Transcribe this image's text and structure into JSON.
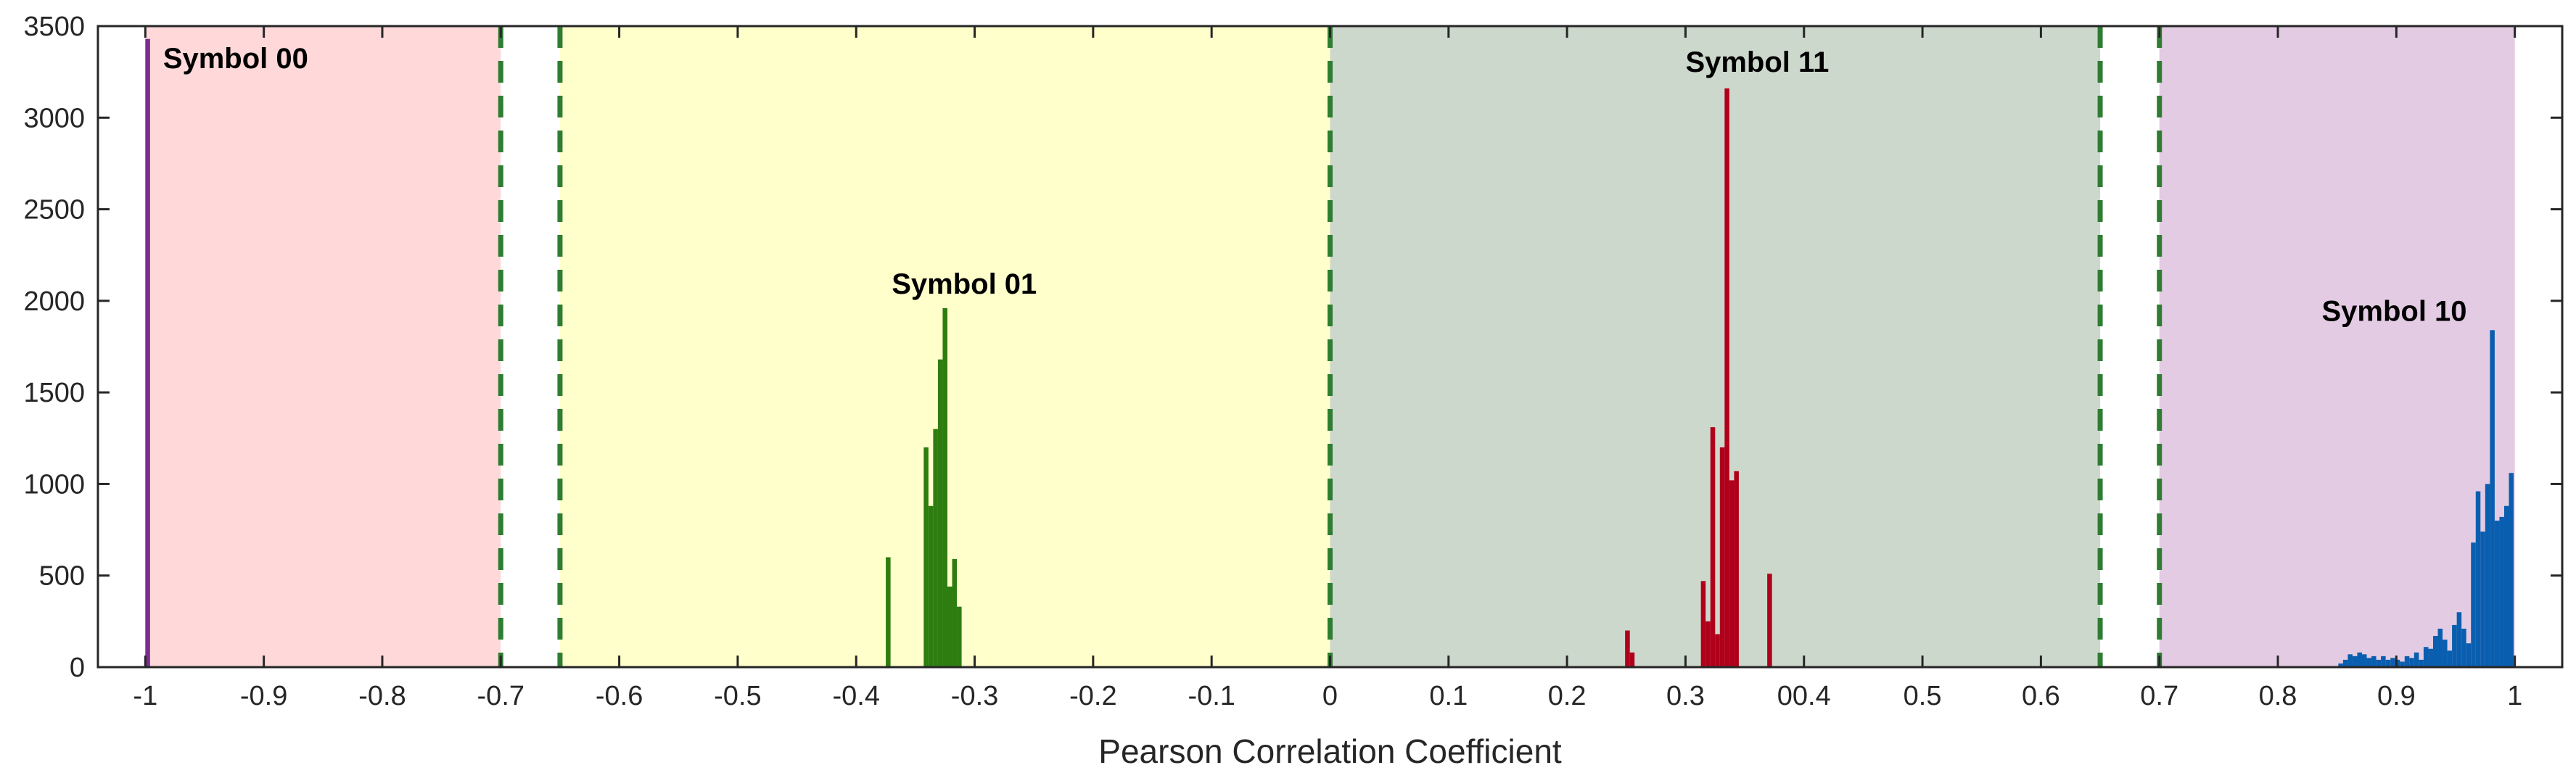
{
  "chart_data": {
    "type": "bar",
    "title": "",
    "xlabel": "Pearson Correlation Coefficient",
    "ylabel": "",
    "xlim": [
      -1.04,
      1.04
    ],
    "ylim": [
      0,
      3500
    ],
    "grid": false,
    "x_ticks": [
      -1,
      -0.9,
      -0.8,
      -0.7,
      -0.6,
      -0.5,
      -0.4,
      -0.3,
      -0.2,
      -0.1,
      0,
      0.1,
      0.2,
      0.3,
      0.4,
      0.5,
      0.6,
      0.7,
      0.8,
      0.9,
      1
    ],
    "x_tick_labels": [
      "-1",
      "-0.9",
      "-0.8",
      "-0.7",
      "-0.6",
      "-0.5",
      "-0.4",
      "-0.3",
      "-0.2",
      "-0.1",
      "0",
      "0.1",
      "0.2",
      "0.3",
      "00.4",
      "0.5",
      "0.6",
      "0.7",
      "0.8",
      "0.9",
      "1"
    ],
    "y_ticks": [
      0,
      500,
      1000,
      1500,
      2000,
      2500,
      3000,
      3500
    ],
    "regions": [
      {
        "x0": -1,
        "x1": -0.7,
        "color": "#ffd9da"
      },
      {
        "x0": -0.65,
        "x1": 0,
        "color": "#ffffcc"
      },
      {
        "x0": 0,
        "x1": 0.65,
        "color": "#cdd8cc"
      },
      {
        "x0": 0.7,
        "x1": 1,
        "color": "#e3cce3"
      }
    ],
    "thresholds": [
      -0.7,
      -0.65,
      0,
      0.65,
      0.7
    ],
    "threshold_color": "#2e7d32",
    "bin_width": 0.004,
    "series": [
      {
        "name": "Symbol 00",
        "color": "#7b2d8e",
        "x": [
          -0.998
        ],
        "y": [
          3430
        ]
      },
      {
        "name": "Symbol 01",
        "color": "#2e7d10",
        "x": [
          -0.373,
          -0.341,
          -0.337,
          -0.333,
          -0.329,
          -0.325,
          -0.321,
          -0.317,
          -0.313
        ],
        "y": [
          600,
          1200,
          880,
          1300,
          1680,
          1960,
          440,
          590,
          330
        ]
      },
      {
        "name": "Symbol 11",
        "color": "#b0001a",
        "x": [
          0.251,
          0.255,
          0.315,
          0.319,
          0.323,
          0.327,
          0.331,
          0.335,
          0.339,
          0.343,
          0.371
        ],
        "y": [
          200,
          80,
          470,
          250,
          1310,
          180,
          1200,
          3160,
          1020,
          1070,
          510
        ]
      },
      {
        "name": "Symbol 10",
        "color": "#0a5eaf",
        "x": [
          0.853,
          0.857,
          0.861,
          0.865,
          0.869,
          0.873,
          0.877,
          0.881,
          0.885,
          0.889,
          0.893,
          0.897,
          0.901,
          0.905,
          0.909,
          0.913,
          0.917,
          0.921,
          0.925,
          0.929,
          0.933,
          0.937,
          0.941,
          0.945,
          0.949,
          0.953,
          0.957,
          0.961,
          0.965,
          0.969,
          0.973,
          0.977,
          0.981,
          0.985,
          0.989,
          0.993,
          0.997
        ],
        "y": [
          20,
          40,
          70,
          60,
          80,
          70,
          50,
          60,
          40,
          60,
          40,
          50,
          40,
          30,
          60,
          50,
          80,
          40,
          110,
          100,
          170,
          210,
          150,
          90,
          230,
          300,
          210,
          130,
          680,
          960,
          740,
          1000,
          1840,
          800,
          820,
          880,
          1060
        ]
      }
    ],
    "annotations": [
      {
        "text": "Symbol 00",
        "x": -0.985,
        "y": 3270,
        "anchor": "start"
      },
      {
        "text": "Symbol 01",
        "x": -0.37,
        "y": 2040,
        "anchor": "start"
      },
      {
        "text": "Symbol 11",
        "x": 0.3,
        "y": 3250,
        "anchor": "start"
      },
      {
        "text": "Symbol 10",
        "x": 0.837,
        "y": 1890,
        "anchor": "start"
      }
    ]
  }
}
